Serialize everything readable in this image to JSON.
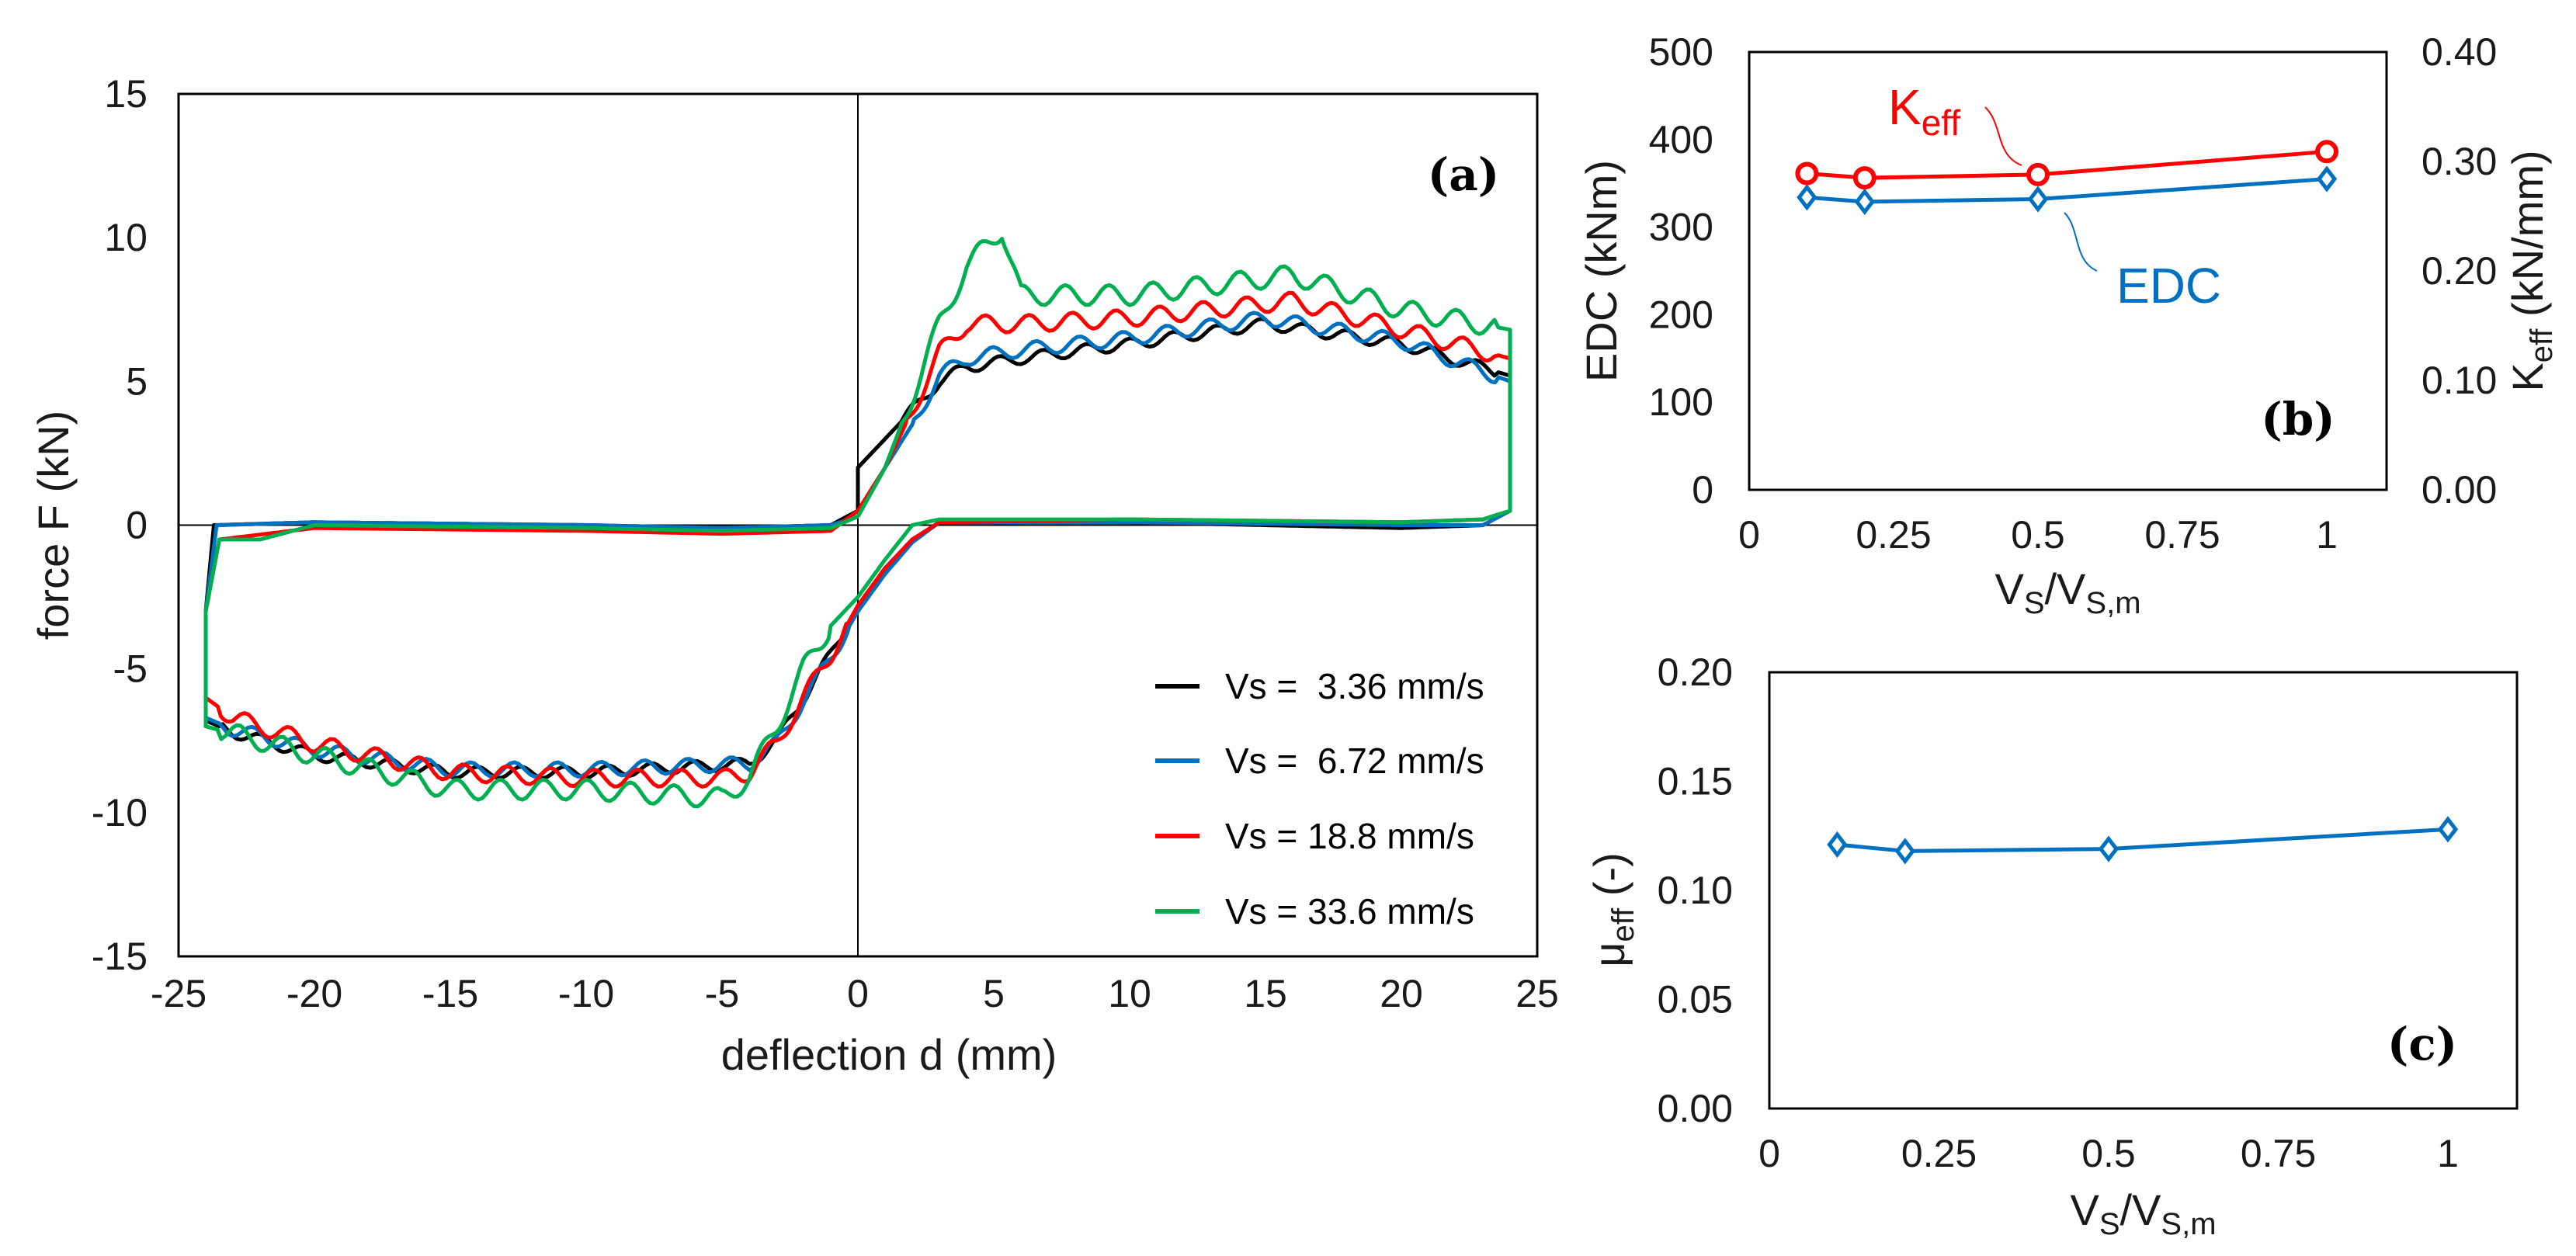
{
  "chart_data": [
    {
      "id": "a",
      "type": "line",
      "panel_label": "(a)",
      "xlabel": "deflection d (mm)",
      "ylabel": "force F (kN)",
      "xlim": [
        -25,
        25
      ],
      "ylim": [
        -15,
        15
      ],
      "xticks": [
        -25,
        -20,
        -15,
        -10,
        -5,
        0,
        5,
        10,
        15,
        20,
        25
      ],
      "yticks": [
        -15,
        -10,
        -5,
        0,
        5,
        10,
        15
      ],
      "grid": false,
      "legend_position": "bottom-right",
      "series": [
        {
          "name": "Vs =  3.36 mm/s",
          "color": "#000000",
          "ripple": 0.2,
          "points": [
            [
              0,
              0.5
            ],
            [
              0,
              2
            ],
            [
              1,
              3
            ],
            [
              2,
              4
            ],
            [
              3,
              5
            ],
            [
              4,
              5.5
            ],
            [
              6,
              5.8
            ],
            [
              10,
              6.3
            ],
            [
              15,
              7.0
            ],
            [
              20,
              6.3
            ],
            [
              24,
              5.2
            ],
            [
              24,
              0.5
            ],
            [
              23,
              0
            ],
            [
              20,
              -0.1
            ],
            [
              10,
              0.1
            ],
            [
              3,
              0.1
            ],
            [
              2,
              -0.5
            ],
            [
              1,
              -1.5
            ],
            [
              0,
              -2.8
            ],
            [
              -1,
              -4.5
            ],
            [
              -2,
              -6
            ],
            [
              -3,
              -7.5
            ],
            [
              -4,
              -8.3
            ],
            [
              -10,
              -8.6
            ],
            [
              -15,
              -8.6
            ],
            [
              -20,
              -8.0
            ],
            [
              -23,
              -7.2
            ],
            [
              -24,
              -6.8
            ],
            [
              -24,
              -3
            ],
            [
              -23.7,
              0
            ],
            [
              -20,
              0.1
            ],
            [
              -10,
              0
            ],
            [
              -5,
              -0.1
            ],
            [
              -1,
              0
            ],
            [
              0,
              0.5
            ]
          ]
        },
        {
          "name": "Vs =  6.72 mm/s",
          "color": "#0070c0",
          "ripple": 0.25,
          "points": [
            [
              0,
              0.3
            ],
            [
              1,
              2
            ],
            [
              2,
              3.5
            ],
            [
              3,
              5.2
            ],
            [
              4,
              5.8
            ],
            [
              6,
              6.1
            ],
            [
              10,
              6.5
            ],
            [
              15,
              7.2
            ],
            [
              20,
              6.4
            ],
            [
              24,
              5.0
            ],
            [
              24,
              0.5
            ],
            [
              23,
              0
            ],
            [
              20,
              0
            ],
            [
              10,
              0.1
            ],
            [
              3,
              0.1
            ],
            [
              2,
              -0.6
            ],
            [
              1,
              -1.7
            ],
            [
              0,
              -3.0
            ],
            [
              -1,
              -4.6
            ],
            [
              -2,
              -6.1
            ],
            [
              -3,
              -7.6
            ],
            [
              -4,
              -8.3
            ],
            [
              -10,
              -8.5
            ],
            [
              -15,
              -8.5
            ],
            [
              -20,
              -7.8
            ],
            [
              -23,
              -7.1
            ],
            [
              -24,
              -6.7
            ],
            [
              -24,
              -3
            ],
            [
              -23.6,
              0
            ],
            [
              -20,
              0.1
            ],
            [
              -10,
              0
            ],
            [
              -5,
              -0.1
            ],
            [
              -1,
              0
            ],
            [
              0,
              0.3
            ]
          ]
        },
        {
          "name": "Vs = 18.8 mm/s",
          "color": "#ff0000",
          "ripple": 0.3,
          "points": [
            [
              0,
              0.5
            ],
            [
              1,
              2
            ],
            [
              2,
              4
            ],
            [
              3,
              6
            ],
            [
              4,
              7
            ],
            [
              6,
              7.0
            ],
            [
              10,
              7.2
            ],
            [
              16,
              7.8
            ],
            [
              20,
              6.8
            ],
            [
              24,
              5.8
            ],
            [
              24,
              0.5
            ],
            [
              23,
              0.2
            ],
            [
              20,
              0.1
            ],
            [
              10,
              0.2
            ],
            [
              3,
              0.1
            ],
            [
              2,
              -0.5
            ],
            [
              1,
              -1.5
            ],
            [
              0,
              -2.8
            ],
            [
              -1,
              -4.5
            ],
            [
              -2,
              -6
            ],
            [
              -3,
              -7.6
            ],
            [
              -4,
              -8.6
            ],
            [
              -5,
              -8.8
            ],
            [
              -10,
              -8.8
            ],
            [
              -15,
              -8.6
            ],
            [
              -20,
              -7.6
            ],
            [
              -23,
              -6.7
            ],
            [
              -24,
              -6.0
            ],
            [
              -24,
              -3
            ],
            [
              -23.5,
              -0.5
            ],
            [
              -20,
              -0.1
            ],
            [
              -10,
              -0.2
            ],
            [
              -5,
              -0.3
            ],
            [
              -1,
              -0.2
            ],
            [
              0,
              0.5
            ]
          ]
        },
        {
          "name": "Vs = 33.6 mm/s",
          "color": "#00b050",
          "ripple": 0.35,
          "points": [
            [
              0,
              0.3
            ],
            [
              1,
              2
            ],
            [
              2,
              4.5
            ],
            [
              3,
              7
            ],
            [
              4,
              9
            ],
            [
              5.3,
              10.3
            ],
            [
              6,
              8
            ],
            [
              10,
              8
            ],
            [
              16,
              8.7
            ],
            [
              20,
              7.5
            ],
            [
              24,
              6.8
            ],
            [
              24,
              0.5
            ],
            [
              23,
              0.2
            ],
            [
              20,
              0.1
            ],
            [
              10,
              0.2
            ],
            [
              3,
              0.2
            ],
            [
              2,
              0
            ],
            [
              1,
              -1.2
            ],
            [
              0,
              -2.5
            ],
            [
              -1,
              -3.5
            ],
            [
              -2,
              -5
            ],
            [
              -3,
              -7
            ],
            [
              -4,
              -8.8
            ],
            [
              -5,
              -9.5
            ],
            [
              -10,
              -9.2
            ],
            [
              -15,
              -9.2
            ],
            [
              -20,
              -8.0
            ],
            [
              -24,
              -7.0
            ],
            [
              -24,
              -3
            ],
            [
              -23.5,
              -0.5
            ],
            [
              -22,
              -0.5
            ],
            [
              -20,
              0
            ],
            [
              -10,
              -0.1
            ],
            [
              -5,
              -0.2
            ],
            [
              -1,
              -0.1
            ],
            [
              0,
              0.3
            ]
          ]
        }
      ]
    },
    {
      "id": "b",
      "type": "line",
      "panel_label": "(b)",
      "xlabel": {
        "v1": "V",
        "s1": "S",
        "v2": "/V",
        "s2": "S,m"
      },
      "ylabel_left": "EDC (kNm)",
      "ylabel_right": {
        "main": "K",
        "sub": "eff",
        "rest": " (kN/mm)"
      },
      "x": [
        0.1,
        0.2,
        0.5,
        1.0
      ],
      "xlim": [
        0,
        1.1
      ],
      "xticks": [
        "0",
        "0.25",
        "0.5",
        "0.75",
        "1"
      ],
      "ylim_left": [
        0,
        500
      ],
      "yticks_left": [
        "0",
        "100",
        "200",
        "300",
        "400",
        "500"
      ],
      "ylim_right": [
        0,
        0.4
      ],
      "yticks_right": [
        "0.00",
        "0.10",
        "0.20",
        "0.30",
        "0.40"
      ],
      "series": [
        {
          "name": "EDC",
          "axis": "left",
          "color": "#0070c0",
          "marker": "diamond",
          "values": [
            334,
            329,
            332,
            355
          ]
        },
        {
          "name": {
            "main": "K",
            "sub": "eff"
          },
          "axis": "right",
          "color": "#ff0000",
          "marker": "circle",
          "values": [
            0.289,
            0.285,
            0.288,
            0.309
          ]
        }
      ]
    },
    {
      "id": "c",
      "type": "line",
      "panel_label": "(c)",
      "xlabel": {
        "v1": "V",
        "s1": "S",
        "v2": "/V",
        "s2": "S,m"
      },
      "ylabel": {
        "main": "μ",
        "sub": "eff",
        "rest": " (-)"
      },
      "x": [
        0.1,
        0.2,
        0.5,
        1.0
      ],
      "xlim": [
        0,
        1.1
      ],
      "xticks": [
        "0",
        "0.25",
        "0.5",
        "0.75",
        "1"
      ],
      "ylim": [
        0,
        0.2
      ],
      "yticks": [
        "0.00",
        "0.05",
        "0.10",
        "0.15",
        "0.20"
      ],
      "series": [
        {
          "name": "mu_eff",
          "color": "#0070c0",
          "marker": "diamond",
          "values": [
            0.121,
            0.118,
            0.119,
            0.128
          ]
        }
      ]
    }
  ]
}
